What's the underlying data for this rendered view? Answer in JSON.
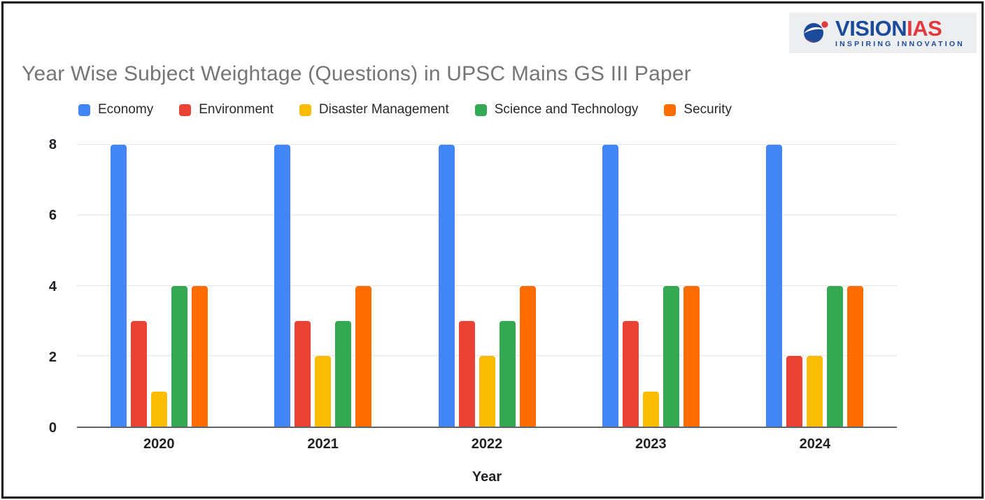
{
  "logo": {
    "brand_primary": "VISION",
    "brand_secondary": "IAS",
    "tagline": "INSPIRING INNOVATION"
  },
  "chart_data": {
    "type": "bar",
    "title": "Year Wise Subject Weightage (Questions) in UPSC Mains GS III Paper",
    "xlabel": "Year",
    "ylabel": "",
    "categories": [
      "2020",
      "2021",
      "2022",
      "2023",
      "2024"
    ],
    "series": [
      {
        "name": "Economy",
        "color": "#4285f4",
        "values": [
          8,
          8,
          8,
          8,
          8
        ]
      },
      {
        "name": "Environment",
        "color": "#ea4335",
        "values": [
          3,
          3,
          3,
          3,
          2
        ]
      },
      {
        "name": "Disaster Management",
        "color": "#fbbc04",
        "values": [
          1,
          2,
          2,
          1,
          2
        ]
      },
      {
        "name": "Science and Technology",
        "color": "#34a853",
        "values": [
          4,
          3,
          3,
          4,
          4
        ]
      },
      {
        "name": "Security",
        "color": "#ff6d01",
        "values": [
          4,
          4,
          4,
          4,
          4
        ]
      }
    ],
    "ylim": [
      0,
      8
    ],
    "yticks": [
      0,
      2,
      4,
      6,
      8
    ],
    "grid": true,
    "legend_position": "top"
  },
  "style": {
    "title_color": "#757575",
    "gridline_color": "#e6e6e6",
    "baseline_color": "#5f6368",
    "logo_blue": "#1b4a9b",
    "logo_red": "#e03a3e"
  }
}
